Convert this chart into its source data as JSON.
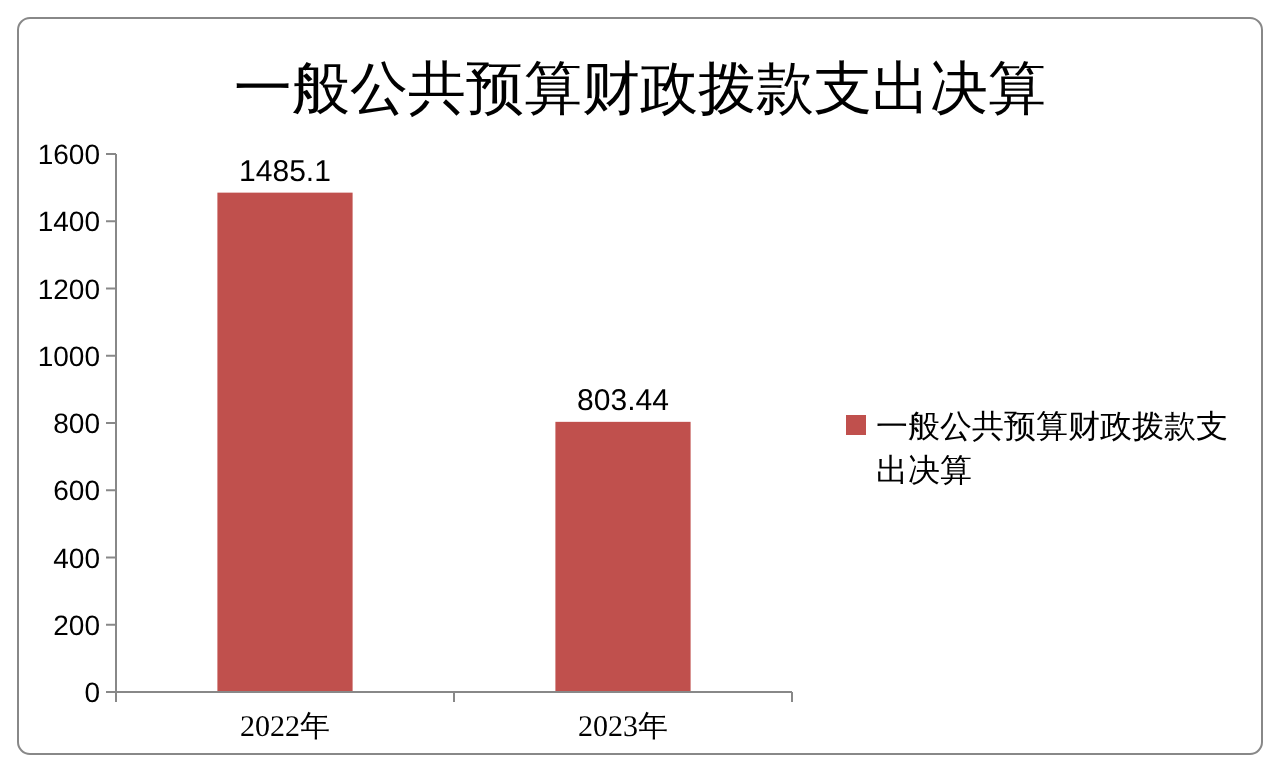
{
  "chart_data": {
    "type": "bar",
    "title": "一般公共预算财政拨款支出决算",
    "categories": [
      "2022年",
      "2023年"
    ],
    "series": [
      {
        "name": "一般公共预算财政拨款支出决算",
        "color": "#c0504d",
        "values": [
          1485.1,
          803.44
        ]
      }
    ],
    "ylim": [
      0,
      1600
    ],
    "yticks": [
      0,
      200,
      400,
      600,
      800,
      1000,
      1200,
      1400,
      1600
    ],
    "grid": false,
    "legend": "right",
    "data_labels": true
  }
}
